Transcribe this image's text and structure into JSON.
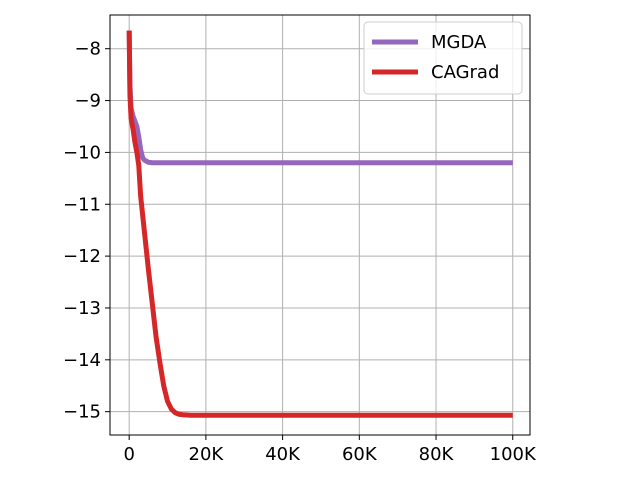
{
  "chart_data": {
    "type": "line",
    "title": "",
    "xlabel": "",
    "ylabel": "",
    "xlim": [
      -5000,
      104500
    ],
    "ylim": [
      -15.45,
      -7.35
    ],
    "grid": true,
    "legend_position": "top-right",
    "x_ticks": [
      {
        "value": 0,
        "label": "0"
      },
      {
        "value": 20000,
        "label": "20K"
      },
      {
        "value": 40000,
        "label": "40K"
      },
      {
        "value": 60000,
        "label": "60K"
      },
      {
        "value": 80000,
        "label": "80K"
      },
      {
        "value": 100000,
        "label": "100K"
      }
    ],
    "y_ticks": [
      {
        "value": -8,
        "label": "−8"
      },
      {
        "value": -9,
        "label": "−9"
      },
      {
        "value": -10,
        "label": "−10"
      },
      {
        "value": -11,
        "label": "−11"
      },
      {
        "value": -12,
        "label": "−12"
      },
      {
        "value": -13,
        "label": "−13"
      },
      {
        "value": -14,
        "label": "−14"
      },
      {
        "value": -15,
        "label": "−15"
      }
    ],
    "series": [
      {
        "name": "MGDA",
        "color": "#9467bd",
        "x": [
          0,
          200,
          500,
          1000,
          1500,
          2000,
          2500,
          3000,
          3500,
          4000,
          5000,
          6000,
          8000,
          10000,
          20000,
          40000,
          60000,
          80000,
          100000
        ],
        "y": [
          -7.65,
          -8.7,
          -9.15,
          -9.3,
          -9.4,
          -9.5,
          -9.7,
          -9.95,
          -10.1,
          -10.15,
          -10.19,
          -10.2,
          -10.2,
          -10.2,
          -10.2,
          -10.2,
          -10.2,
          -10.2,
          -10.2
        ]
      },
      {
        "name": "CAGrad",
        "color": "#d62728",
        "x": [
          0,
          200,
          500,
          1000,
          1500,
          2000,
          2500,
          3000,
          4000,
          5000,
          6000,
          7000,
          8000,
          9000,
          10000,
          11000,
          12000,
          13000,
          14000,
          16000,
          20000,
          40000,
          60000,
          80000,
          100000
        ],
        "y": [
          -7.65,
          -8.9,
          -9.35,
          -9.55,
          -9.8,
          -10.0,
          -10.25,
          -10.85,
          -11.55,
          -12.25,
          -12.9,
          -13.55,
          -14.05,
          -14.5,
          -14.8,
          -14.95,
          -15.02,
          -15.05,
          -15.06,
          -15.07,
          -15.07,
          -15.07,
          -15.07,
          -15.07,
          -15.07
        ]
      }
    ]
  }
}
